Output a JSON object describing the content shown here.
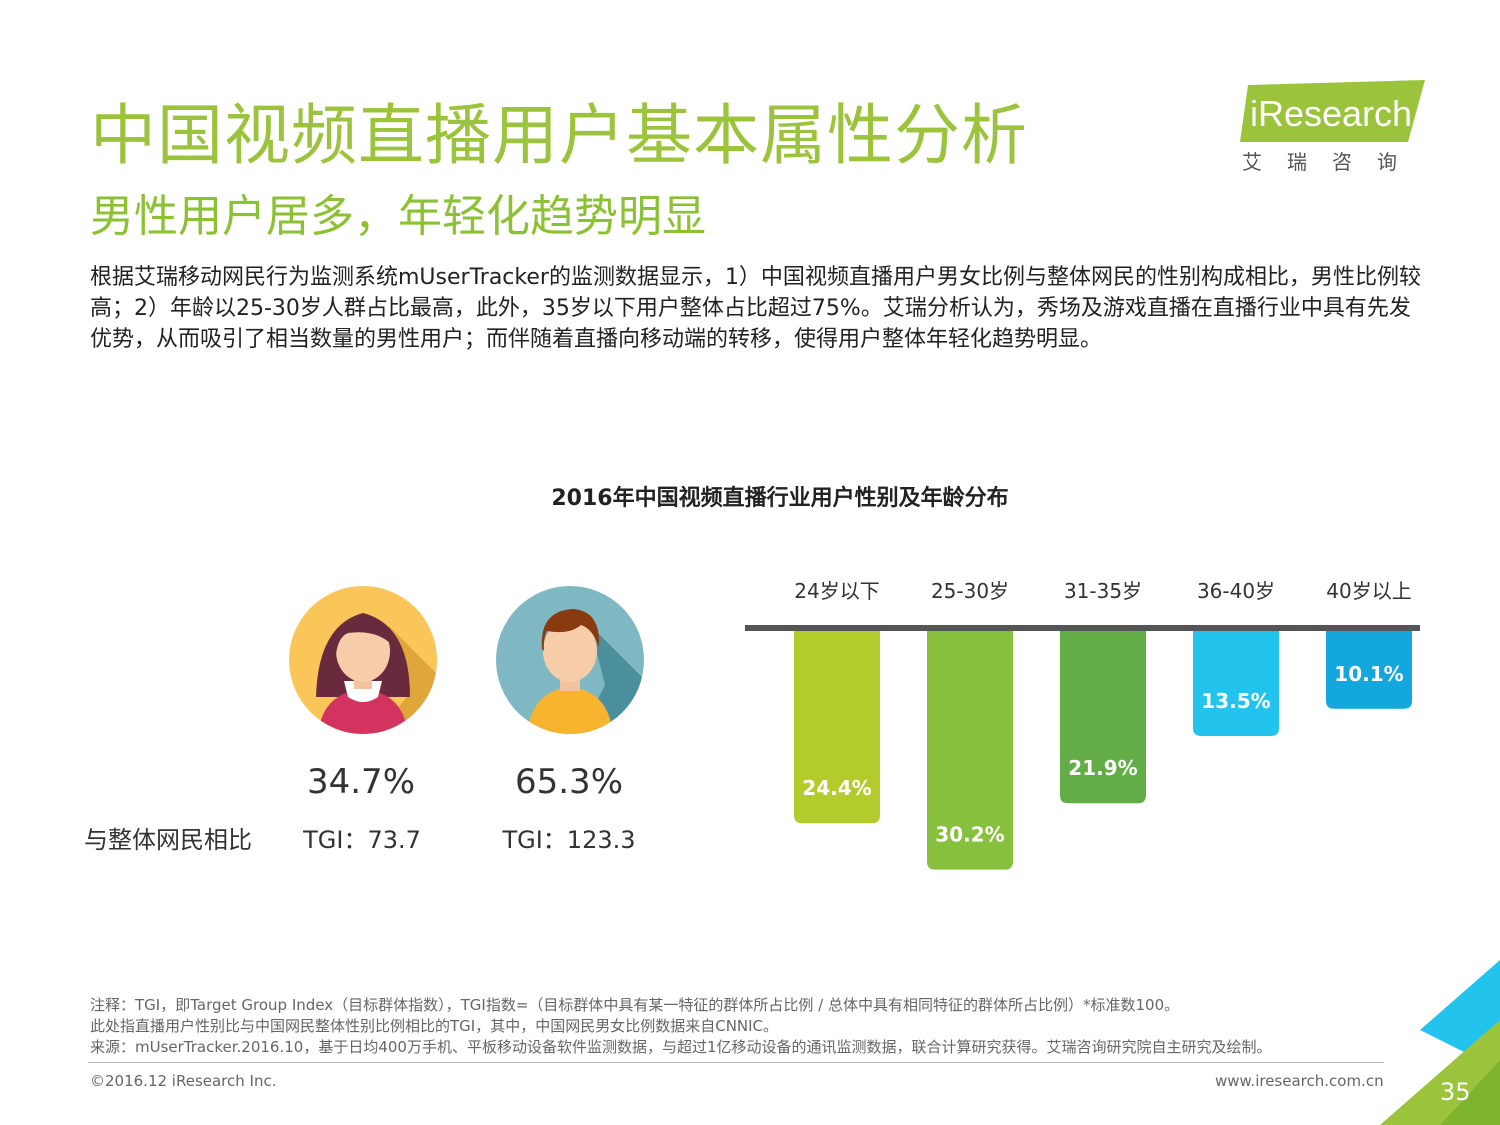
{
  "header": {
    "title": "中国视频直播用户基本属性分析",
    "subtitle": "男性用户居多，年轻化趋势明显",
    "logo_text": "iResearch",
    "logo_cn": "艾瑞咨询"
  },
  "body_text": "根据艾瑞移动网民行为监测系统mUserTracker的监测数据显示，1）中国视频直播用户男女比例与整体网民的性别构成相比，男性比例较高；2）年龄以25-30岁人群占比最高，此外，35岁以下用户整体占比超过75%。艾瑞分析认为，秀场及游戏直播在直播行业中具有先发优势，从而吸引了相当数量的男性用户；而伴随着直播向移动端的转移，使得用户整体年轻化趋势明显。",
  "gender": {
    "female_pct": "34.7%",
    "male_pct": "65.3%",
    "tgi_label": "与整体网民相比",
    "female_tgi": "TGI：73.7",
    "male_tgi": "TGI：123.3"
  },
  "colors": {
    "title_green": "#9bc43c",
    "bar1": "#b3cc2c",
    "bar2": "#86c03d",
    "bar3": "#62ad46",
    "bar4": "#22c4ee",
    "bar5": "#14a7de"
  },
  "chart_data": {
    "type": "bar",
    "title": "2016年中国视频直播行业用户性别及年龄分布",
    "categories": [
      "24岁以下",
      "25-30岁",
      "31-35岁",
      "36-40岁",
      "40岁以上"
    ],
    "values": [
      24.4,
      30.2,
      21.9,
      13.5,
      10.1
    ],
    "value_labels": [
      "24.4%",
      "30.2%",
      "21.9%",
      "13.5%",
      "10.1%"
    ],
    "orientation": "downward",
    "ylim": [
      0,
      32
    ],
    "gender": {
      "categories": [
        "女",
        "男"
      ],
      "values": [
        34.7,
        65.3
      ],
      "tgi": [
        73.7,
        123.3
      ]
    }
  },
  "footer": {
    "note1": "注释：TGI，即Target Group Index（目标群体指数），TGI指数=（目标群体中具有某一特征的群体所占比例 / 总体中具有相同特征的群体所占比例）*标准数100。",
    "note2": "此处指直播用户性别比与中国网民整体性别比例相比的TGI，其中，中国网民男女比例数据来自CNNIC。",
    "source": "来源：mUserTracker.2016.10，基于日均400万手机、平板移动设备软件监测数据，与超过1亿移动设备的通讯监测数据，联合计算研究获得。艾瑞咨询研究院自主研究及绘制。",
    "copyright": "©2016.12 iResearch Inc.",
    "website": "www.iresearch.com.cn",
    "page": "35"
  }
}
